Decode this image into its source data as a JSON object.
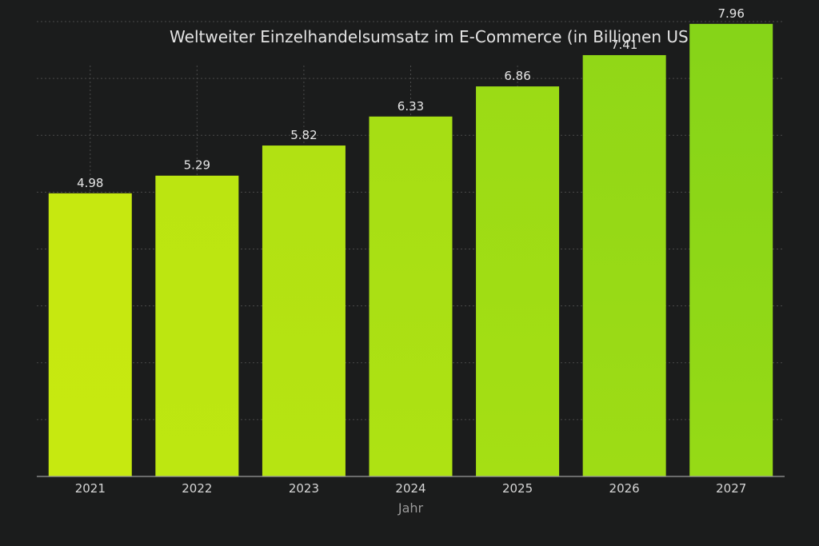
{
  "chart_data": {
    "type": "bar",
    "title": "Weltweiter Einzelhandelsumsatz im E-Commerce (in Billionen USD)",
    "xlabel": "Jahr",
    "ylabel": "",
    "categories": [
      "2021",
      "2022",
      "2023",
      "2024",
      "2025",
      "2026",
      "2027"
    ],
    "values": [
      4.98,
      5.29,
      5.82,
      6.33,
      6.86,
      7.41,
      7.96
    ],
    "value_labels": [
      "4.98",
      "5.29",
      "5.82",
      "6.33",
      "6.86",
      "7.41",
      "7.96"
    ],
    "ylim": [
      0,
      8
    ],
    "grid": true,
    "legend": "none",
    "colors": {
      "background": "#1b1c1c",
      "bar_start": "#c6e810",
      "bar_end": "#86d418",
      "grid": "#4a4a4a",
      "axis": "#9a9a9a"
    }
  }
}
